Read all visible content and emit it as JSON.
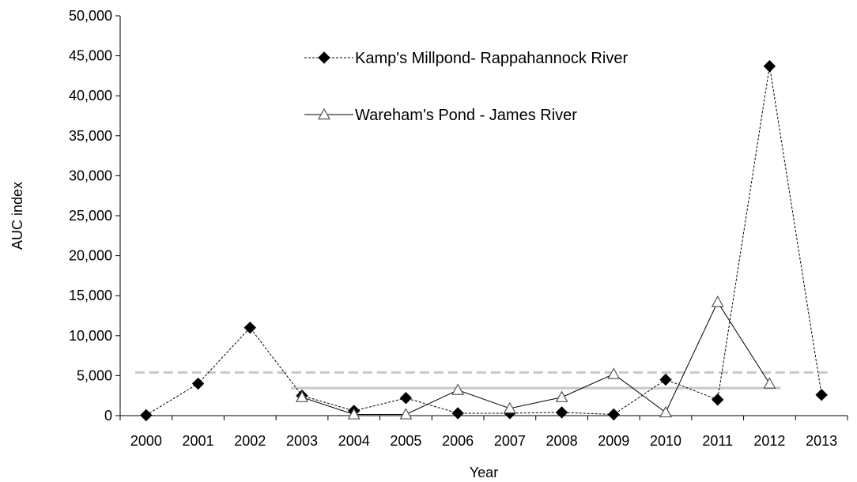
{
  "chart_data": {
    "type": "line",
    "title": "",
    "xlabel": "Year",
    "ylabel": "AUC index",
    "categories": [
      "2000",
      "2001",
      "2002",
      "2003",
      "2004",
      "2005",
      "2006",
      "2007",
      "2008",
      "2009",
      "2010",
      "2011",
      "2012",
      "2013"
    ],
    "ylim": [
      0,
      50000
    ],
    "yticks": [
      "0",
      "5,000",
      "10,000",
      "15,000",
      "20,000",
      "25,000",
      "30,000",
      "35,000",
      "40,000",
      "45,000",
      "50,000"
    ],
    "ytick_values": [
      0,
      5000,
      10000,
      15000,
      20000,
      25000,
      30000,
      35000,
      40000,
      45000,
      50000
    ],
    "grid": false,
    "legend_position": "top-center",
    "series": [
      {
        "name": "Kamp's Millpond- Rappahannock River",
        "marker": "filled-diamond",
        "line_style": "dotted",
        "values": [
          50,
          4000,
          11000,
          2500,
          600,
          2200,
          300,
          300,
          400,
          150,
          4500,
          2000,
          43700,
          2600
        ]
      },
      {
        "name": "Wareham's Pond - James River",
        "marker": "open-triangle",
        "line_style": "solid",
        "values": [
          null,
          null,
          null,
          2300,
          150,
          150,
          3200,
          900,
          2300,
          5200,
          400,
          14200,
          4000,
          null
        ]
      }
    ],
    "reference_lines": [
      {
        "style": "dashed",
        "color": "#c8c8c8",
        "value": 5400,
        "from": "2000",
        "to": "2013"
      },
      {
        "style": "solid",
        "color": "#c8c8c8",
        "value": 3450,
        "from": "2003",
        "to": "2012"
      }
    ]
  }
}
